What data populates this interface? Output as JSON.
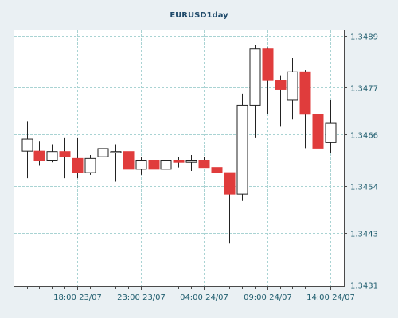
{
  "colors": {
    "background": "#eaf0f3",
    "plot_background": "#ffffff",
    "grid": "#a9d3d3",
    "axis": "#4a4a4a",
    "label": "#1f5d6e",
    "title": "#1f4a6a",
    "down_candle": "#e03c3c",
    "up_candle": "#ffffff",
    "candle_outline": "#222222"
  },
  "chart_data": {
    "type": "candlestick",
    "title": "EURUSD1day",
    "y_range": [
      1.3431,
      1.3489
    ],
    "y_ticks": [
      "1.3431",
      "1.3443",
      "1.3454",
      "1.3466",
      "1.3477",
      "1.3489"
    ],
    "x_ticks": [
      "18:00 23/07",
      "23:00 23/07",
      "04:00 24/07",
      "09:00 24/07",
      "14:00 24/07"
    ],
    "x_tick_bar_index": [
      4,
      9,
      14,
      19,
      24
    ],
    "grid": true,
    "candles": [
      {
        "o": 1.34621,
        "h": 1.34691,
        "l": 1.34558,
        "c": 1.34649
      },
      {
        "o": 1.34621,
        "h": 1.34645,
        "l": 1.34587,
        "c": 1.346
      },
      {
        "o": 1.346,
        "h": 1.34637,
        "l": 1.34595,
        "c": 1.3462
      },
      {
        "o": 1.3462,
        "h": 1.34653,
        "l": 1.34558,
        "c": 1.34608
      },
      {
        "o": 1.34604,
        "h": 1.34653,
        "l": 1.34558,
        "c": 1.34571
      },
      {
        "o": 1.34571,
        "h": 1.34612,
        "l": 1.34566,
        "c": 1.34604
      },
      {
        "o": 1.34608,
        "h": 1.34645,
        "l": 1.34595,
        "c": 1.34627
      },
      {
        "o": 1.3462,
        "h": 1.34637,
        "l": 1.3455,
        "c": 1.3462
      },
      {
        "o": 1.3462,
        "h": 1.3462,
        "l": 1.34583,
        "c": 1.34579
      },
      {
        "o": 1.34579,
        "h": 1.34608,
        "l": 1.34566,
        "c": 1.346
      },
      {
        "o": 1.346,
        "h": 1.34608,
        "l": 1.34575,
        "c": 1.34579
      },
      {
        "o": 1.34579,
        "h": 1.34616,
        "l": 1.34558,
        "c": 1.346
      },
      {
        "o": 1.346,
        "h": 1.34608,
        "l": 1.34583,
        "c": 1.34595
      },
      {
        "o": 1.34595,
        "h": 1.34612,
        "l": 1.34575,
        "c": 1.346
      },
      {
        "o": 1.346,
        "h": 1.34608,
        "l": 1.34587,
        "c": 1.34583
      },
      {
        "o": 1.34583,
        "h": 1.34595,
        "l": 1.34562,
        "c": 1.34571
      },
      {
        "o": 1.34571,
        "h": 1.34571,
        "l": 1.34406,
        "c": 1.34521
      },
      {
        "o": 1.34521,
        "h": 1.34755,
        "l": 1.34505,
        "c": 1.34728
      },
      {
        "o": 1.34728,
        "h": 1.34868,
        "l": 1.34653,
        "c": 1.34859
      },
      {
        "o": 1.34859,
        "h": 1.34863,
        "l": 1.34707,
        "c": 1.34786
      },
      {
        "o": 1.34786,
        "h": 1.34798,
        "l": 1.34678,
        "c": 1.34765
      },
      {
        "o": 1.3474,
        "h": 1.34838,
        "l": 1.34695,
        "c": 1.34806
      },
      {
        "o": 1.34806,
        "h": 1.3481,
        "l": 1.34628,
        "c": 1.34707
      },
      {
        "o": 1.34707,
        "h": 1.34728,
        "l": 1.34587,
        "c": 1.34628
      },
      {
        "o": 1.34641,
        "h": 1.3474,
        "l": 1.34616,
        "c": 1.34686
      }
    ]
  }
}
